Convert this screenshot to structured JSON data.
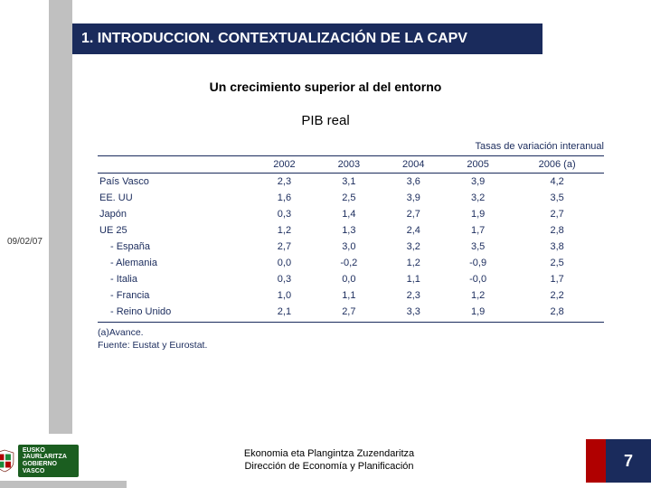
{
  "header": {
    "title": "1. INTRODUCCION. CONTEXTUALIZACIÓN DE LA CAPV",
    "subtitle": "Un crecimiento superior al del entorno",
    "chart_title": "PIB real"
  },
  "side": {
    "date": "09/02/07"
  },
  "table": {
    "unit_label": "Tasas de variación interanual",
    "columns": [
      "",
      "2002",
      "2003",
      "2004",
      "2005",
      "2006 (a)"
    ],
    "rows": [
      {
        "cells": [
          "País Vasco",
          "2,3",
          "3,1",
          "3,6",
          "3,9",
          "4,2"
        ],
        "indent": false
      },
      {
        "cells": [
          "EE. UU",
          "1,6",
          "2,5",
          "3,9",
          "3,2",
          "3,5"
        ],
        "indent": false
      },
      {
        "cells": [
          "Japón",
          "0,3",
          "1,4",
          "2,7",
          "1,9",
          "2,7"
        ],
        "indent": false
      },
      {
        "cells": [
          "UE 25",
          "1,2",
          "1,3",
          "2,4",
          "1,7",
          "2,8"
        ],
        "indent": false
      },
      {
        "cells": [
          "- España",
          "2,7",
          "3,0",
          "3,2",
          "3,5",
          "3,8"
        ],
        "indent": true
      },
      {
        "cells": [
          "- Alemania",
          "0,0",
          "-0,2",
          "1,2",
          "-0,9",
          "2,5"
        ],
        "indent": true
      },
      {
        "cells": [
          "- Italia",
          "0,3",
          "0,0",
          "1,1",
          "-0,0",
          "1,7"
        ],
        "indent": true
      },
      {
        "cells": [
          "- Francia",
          "1,0",
          "1,1",
          "2,3",
          "1,2",
          "2,2"
        ],
        "indent": true
      },
      {
        "cells": [
          "- Reino Unido",
          "2,1",
          "2,7",
          "3,3",
          "1,9",
          "2,8"
        ],
        "indent": true
      }
    ],
    "footnote_a": "(a)Avance.",
    "footnote_b": "Fuente: Eustat y Eurostat."
  },
  "footer": {
    "logo_line1": "EUSKO JAURLARITZA",
    "logo_line2": "GOBIERNO VASCO",
    "dept_line1": "Ekonomia eta Plangintza Zuzendaritza",
    "dept_line2": "Dirección de Economía y Planificación",
    "page": "7"
  },
  "colors": {
    "dark_blue": "#1a2b5c",
    "gray": "#c0c0c0",
    "red": "#b00000",
    "green": "#1b5e20"
  }
}
